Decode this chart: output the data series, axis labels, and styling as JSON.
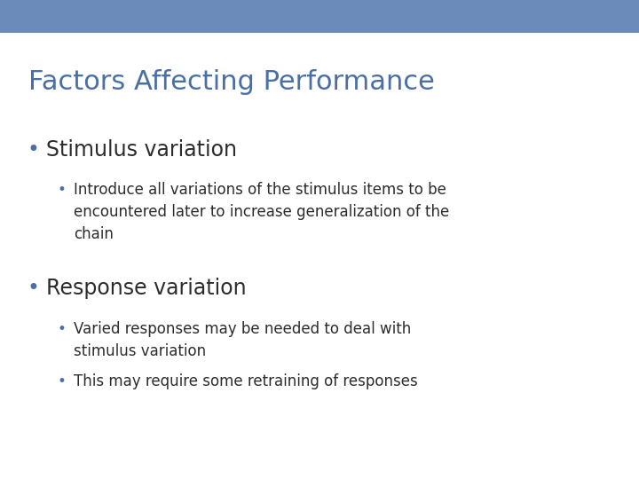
{
  "title": "Factors Affecting Performance",
  "title_color": "#4a6fa5",
  "title_fontsize": 22,
  "title_bold": false,
  "background_color": "#ffffff",
  "header_bar_color": "#6b8cba",
  "header_bar_height": 0.068,
  "bullet1_text": "Stimulus variation",
  "bullet1_fontsize": 17,
  "bullet1_color": "#2c2c2c",
  "sub_bullet1_text": "Introduce all variations of the stimulus items to be\nencountered later to increase generalization of the\nchain",
  "sub_bullet1_fontsize": 12,
  "sub_bullet1_color": "#2c2c2c",
  "bullet2_text": "Response variation",
  "bullet2_fontsize": 17,
  "bullet2_color": "#2c2c2c",
  "sub_bullet2a_text": "Varied responses may be needed to deal with\nstimulus variation",
  "sub_bullet2b_text": "This may require some retraining of responses",
  "sub_bullet2_fontsize": 12,
  "sub_bullet2_color": "#2c2c2c",
  "bullet_marker_color": "#4a6fa5",
  "sub_bullet_marker_color": "#4a6fa5"
}
